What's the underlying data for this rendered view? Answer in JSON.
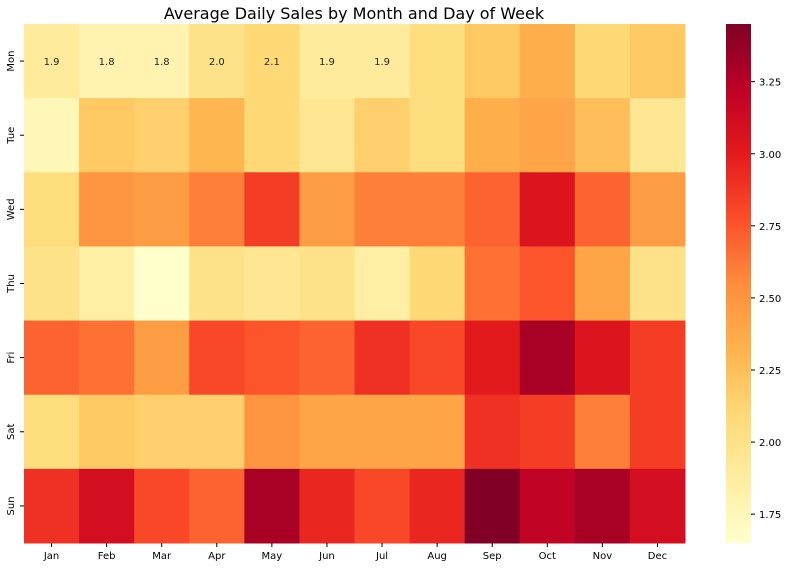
{
  "chart_data": {
    "type": "heatmap",
    "title": "Average Daily Sales by Month and Day of Week",
    "xlabel": "",
    "ylabel": "",
    "x_categories": [
      "Jan",
      "Feb",
      "Mar",
      "Apr",
      "May",
      "Jun",
      "Jul",
      "Aug",
      "Sep",
      "Oct",
      "Nov",
      "Dec"
    ],
    "y_categories": [
      "Mon",
      "Tue",
      "Wed",
      "Thu",
      "Fri",
      "Sat",
      "Sun"
    ],
    "values": [
      [
        1.9,
        1.8,
        1.8,
        2.0,
        2.1,
        1.9,
        1.9,
        2.05,
        2.2,
        2.35,
        2.1,
        2.2
      ],
      [
        1.75,
        2.2,
        2.15,
        2.3,
        2.1,
        1.95,
        2.15,
        2.05,
        2.35,
        2.4,
        2.25,
        1.95
      ],
      [
        2.05,
        2.5,
        2.45,
        2.6,
        2.85,
        2.45,
        2.6,
        2.6,
        2.7,
        3.05,
        2.7,
        2.45
      ],
      [
        2.0,
        1.85,
        1.65,
        2.0,
        1.95,
        2.0,
        1.85,
        2.1,
        2.65,
        2.75,
        2.4,
        2.0
      ],
      [
        2.7,
        2.65,
        2.45,
        2.8,
        2.75,
        2.7,
        2.9,
        2.8,
        3.0,
        3.3,
        3.05,
        2.85
      ],
      [
        2.05,
        2.2,
        2.15,
        2.15,
        2.5,
        2.4,
        2.4,
        2.4,
        2.9,
        2.85,
        2.6,
        2.85
      ],
      [
        2.9,
        3.1,
        2.8,
        2.7,
        3.3,
        2.95,
        2.8,
        2.95,
        3.45,
        3.2,
        3.3,
        3.1
      ]
    ],
    "annotations": [
      {
        "row": 0,
        "col": 0,
        "text": "1.9"
      },
      {
        "row": 0,
        "col": 1,
        "text": "1.8"
      },
      {
        "row": 0,
        "col": 2,
        "text": "1.8"
      },
      {
        "row": 0,
        "col": 3,
        "text": "2.0"
      },
      {
        "row": 0,
        "col": 4,
        "text": "2.1"
      },
      {
        "row": 0,
        "col": 5,
        "text": "1.9"
      },
      {
        "row": 0,
        "col": 6,
        "text": "1.9"
      }
    ],
    "colormap": "YlOrRd",
    "colorbar": {
      "vmin": 1.65,
      "vmax": 3.45,
      "ticks": [
        1.75,
        2.0,
        2.25,
        2.5,
        2.75,
        3.0,
        3.25
      ],
      "tick_labels": [
        "1.75",
        "2.00",
        "2.25",
        "2.50",
        "2.75",
        "3.00",
        "3.25"
      ]
    }
  }
}
